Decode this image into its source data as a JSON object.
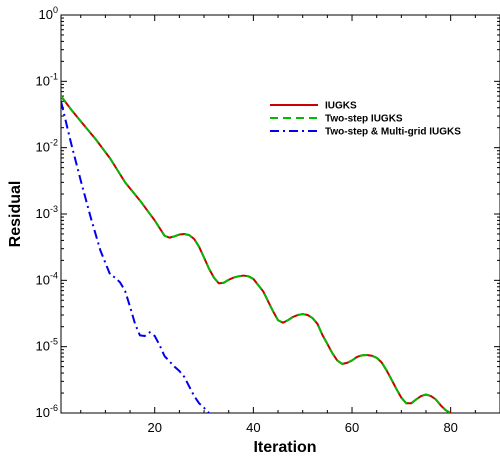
{
  "chart_data": {
    "type": "line",
    "xlabel": "Iteration",
    "ylabel": "Residual",
    "x_scale": "linear",
    "y_scale": "log",
    "xlim": [
      1,
      90
    ],
    "ylim": [
      1e-06,
      1
    ],
    "x_ticks": [
      20,
      40,
      60,
      80
    ],
    "y_ticks": [
      {
        "base": "10",
        "exp": "0",
        "value": 1
      },
      {
        "base": "10",
        "exp": "-1",
        "value": 0.1
      },
      {
        "base": "10",
        "exp": "-2",
        "value": 0.01
      },
      {
        "base": "10",
        "exp": "-3",
        "value": 0.001
      },
      {
        "base": "10",
        "exp": "-4",
        "value": 0.0001
      },
      {
        "base": "10",
        "exp": "-5",
        "value": 1e-05
      },
      {
        "base": "10",
        "exp": "-6",
        "value": 1e-06
      }
    ],
    "grid": false,
    "legend_position": "top-right",
    "series": [
      {
        "name": "IUGKS",
        "color": "#cc0000",
        "dash": "solid",
        "x": [
          1,
          3,
          5,
          8,
          11,
          14,
          17,
          20,
          22,
          23,
          24,
          25,
          26,
          27,
          28,
          29,
          30,
          31,
          32,
          33,
          34,
          35,
          36,
          37,
          38,
          39,
          40,
          42,
          44,
          45,
          46,
          47,
          48,
          49,
          50,
          51,
          52,
          53,
          54,
          55,
          56,
          57,
          58,
          59,
          60,
          61,
          62,
          63,
          64,
          65,
          66,
          67,
          68,
          69,
          70,
          71,
          72,
          73,
          74,
          75,
          76,
          77,
          78,
          79,
          80
        ],
        "y": [
          0.06,
          0.038,
          0.025,
          0.0135,
          0.0068,
          0.003,
          0.0016,
          0.0008,
          0.00047,
          0.00044,
          0.00046,
          0.00049,
          0.0005,
          0.00048,
          0.00042,
          0.00032,
          0.00022,
          0.00015,
          0.00011,
          9e-05,
          9.2e-05,
          0.000102,
          0.00011,
          0.000115,
          0.000118,
          0.000115,
          0.000105,
          6.8e-05,
          3.4e-05,
          2.5e-05,
          2.3e-05,
          2.5e-05,
          2.8e-05,
          3e-05,
          3.1e-05,
          3e-05,
          2.7e-05,
          2.2e-05,
          1.5e-05,
          1.1e-05,
          8e-06,
          6.2e-06,
          5.5e-06,
          5.7e-06,
          6.2e-06,
          7e-06,
          7.4e-06,
          7.5e-06,
          7.3e-06,
          6.8e-06,
          5.8e-06,
          4.4e-06,
          3.2e-06,
          2.3e-06,
          1.7e-06,
          1.4e-06,
          1.4e-06,
          1.6e-06,
          1.8e-06,
          1.9e-06,
          1.8e-06,
          1.6e-06,
          1.3e-06,
          1.1e-06,
          1e-06
        ]
      },
      {
        "name": "Two-step IUGKS",
        "color": "#00bb00",
        "dash": "dashed",
        "x": [
          1,
          3,
          5,
          8,
          11,
          14,
          17,
          20,
          22,
          23,
          24,
          25,
          26,
          27,
          28,
          29,
          30,
          31,
          32,
          33,
          34,
          35,
          36,
          37,
          38,
          39,
          40,
          42,
          44,
          45,
          46,
          47,
          48,
          49,
          50,
          51,
          52,
          53,
          54,
          55,
          56,
          57,
          58,
          59,
          60,
          61,
          62,
          63,
          64,
          65,
          66,
          67,
          68,
          69,
          70,
          71,
          72,
          73,
          74,
          75,
          76,
          77,
          78,
          79,
          80
        ],
        "y": [
          0.06,
          0.038,
          0.025,
          0.0135,
          0.0068,
          0.003,
          0.0016,
          0.0008,
          0.00047,
          0.00044,
          0.00046,
          0.00049,
          0.0005,
          0.00048,
          0.00042,
          0.00032,
          0.00022,
          0.00015,
          0.00011,
          9e-05,
          9.2e-05,
          0.000102,
          0.00011,
          0.000115,
          0.000118,
          0.000115,
          0.000105,
          6.8e-05,
          3.4e-05,
          2.5e-05,
          2.3e-05,
          2.5e-05,
          2.8e-05,
          3e-05,
          3.1e-05,
          3e-05,
          2.7e-05,
          2.2e-05,
          1.5e-05,
          1.1e-05,
          8e-06,
          6.2e-06,
          5.5e-06,
          5.7e-06,
          6.2e-06,
          7e-06,
          7.4e-06,
          7.5e-06,
          7.3e-06,
          6.8e-06,
          5.8e-06,
          4.4e-06,
          3.2e-06,
          2.3e-06,
          1.7e-06,
          1.4e-06,
          1.4e-06,
          1.6e-06,
          1.8e-06,
          1.9e-06,
          1.8e-06,
          1.6e-06,
          1.3e-06,
          1.1e-06,
          1e-06
        ]
      },
      {
        "name": "Two-step & Multi-grid IUGKS",
        "color": "#0000ee",
        "dash": "dashdot",
        "x": [
          1,
          3,
          5,
          7,
          9,
          11,
          12,
          13,
          14,
          15,
          16,
          17,
          18,
          19,
          20,
          21,
          22,
          23,
          24,
          25,
          26,
          27,
          28,
          29,
          30,
          31,
          32
        ],
        "y": [
          0.05,
          0.012,
          0.0032,
          0.0009,
          0.00028,
          0.00012,
          0.00011,
          9.25e-05,
          6.9e-05,
          4e-05,
          2.22e-05,
          1.48e-05,
          1.45e-05,
          1.65e-05,
          1.45e-05,
          1.05e-05,
          7.2e-06,
          6e-06,
          5e-06,
          4.3e-06,
          3.5e-06,
          2.5e-06,
          1.8e-06,
          1.4e-06,
          1.2e-06,
          1e-06,
          8.5e-07
        ]
      }
    ]
  }
}
